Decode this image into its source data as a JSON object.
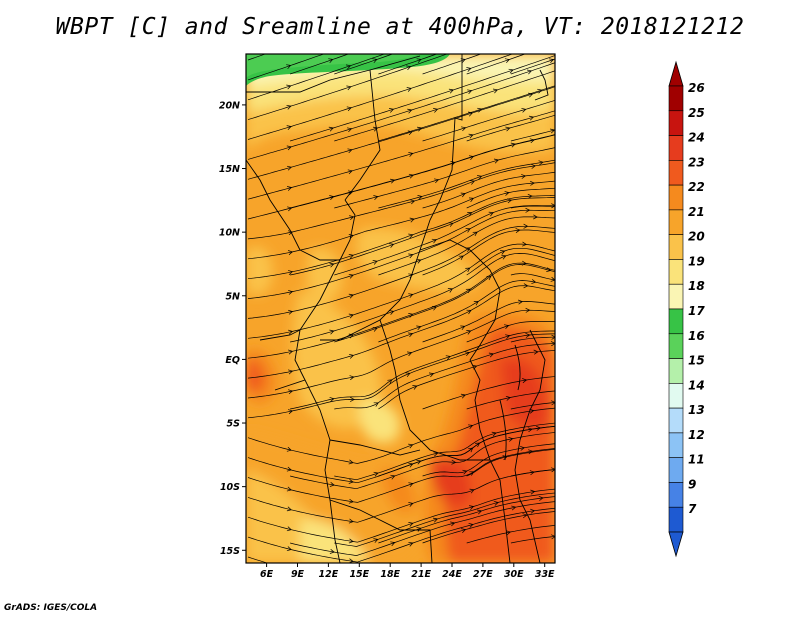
{
  "title": "WBPT [C] and Sreamline at 400hPa, VT: 2018121212",
  "credit": "GrADS: IGES/COLA",
  "map": {
    "lon_range": [
      4,
      34
    ],
    "lat_range": [
      -16,
      24
    ],
    "lon_ticks": [
      {
        "value": 6,
        "label": "6E"
      },
      {
        "value": 9,
        "label": "9E"
      },
      {
        "value": 12,
        "label": "12E"
      },
      {
        "value": 15,
        "label": "15E"
      },
      {
        "value": 18,
        "label": "18E"
      },
      {
        "value": 21,
        "label": "21E"
      },
      {
        "value": 24,
        "label": "24E"
      },
      {
        "value": 27,
        "label": "27E"
      },
      {
        "value": 30,
        "label": "30E"
      },
      {
        "value": 33,
        "label": "33E"
      }
    ],
    "lat_ticks": [
      {
        "value": 20,
        "label": "20N"
      },
      {
        "value": 15,
        "label": "15N"
      },
      {
        "value": 10,
        "label": "10N"
      },
      {
        "value": 5,
        "label": "5N"
      },
      {
        "value": 0,
        "label": "EQ"
      },
      {
        "value": -5,
        "label": "5S"
      },
      {
        "value": -10,
        "label": "10S"
      },
      {
        "value": -15,
        "label": "15S"
      }
    ]
  },
  "colorbar": {
    "labels": [
      "26",
      "25",
      "24",
      "23",
      "22",
      "21",
      "20",
      "19",
      "18",
      "17",
      "16",
      "15",
      "14",
      "13",
      "12",
      "11",
      "9",
      "7"
    ],
    "colors": [
      "#a00000",
      "#c8140f",
      "#e63c1e",
      "#f05a1e",
      "#f58a1e",
      "#f7a42a",
      "#fac24a",
      "#fae37a",
      "#faf5b4",
      "#37c346",
      "#5ad25a",
      "#b4f0aa",
      "#e1faf0",
      "#b4dcfa",
      "#8cc3f5",
      "#6eaaf0",
      "#4682e6",
      "#1e5ad2"
    ],
    "top_arrow_color": "#a00000",
    "bottom_arrow_color": "#1e5ad2"
  }
}
